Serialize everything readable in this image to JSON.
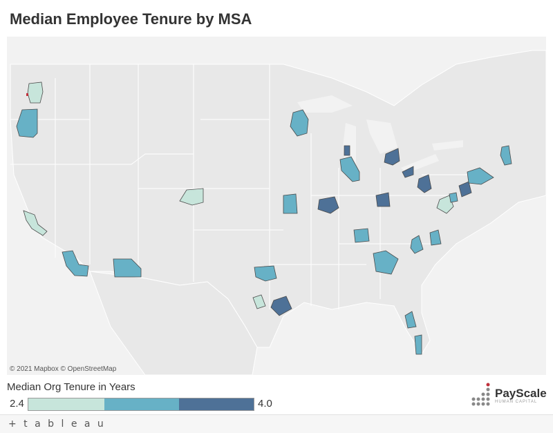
{
  "title": "Median Employee Tenure by MSA",
  "attribution": "© 2021 Mapbox  © OpenStreetMap",
  "legend": {
    "title": "Median Org Tenure in Years",
    "min": "2.4",
    "max": "4.0",
    "colors": [
      "#c7e5db",
      "#67b1c6",
      "#4e7197"
    ]
  },
  "brand": {
    "name": "PayScale",
    "tagline": "HUMAN CAPITAL",
    "accent": "#c0303b"
  },
  "footer": {
    "logo": "+ t a b l e a u"
  },
  "map": {
    "background": "#f2f2f2",
    "land": "#e8e8e8",
    "border": "#ffffff",
    "msa_levels": {
      "Seattle": "low",
      "Portland": "mid",
      "San Francisco": "low",
      "Los Angeles": "mid",
      "Phoenix": "mid",
      "Denver": "low",
      "Minneapolis": "mid",
      "Milwaukee": "high",
      "Chicago": "mid",
      "Detroit": "high",
      "Cleveland": "high",
      "Pittsburgh": "high",
      "Kansas City": "mid",
      "St. Louis": "high",
      "Cincinnati": "high",
      "Washington": "low",
      "Baltimore": "mid",
      "Philadelphia": "high",
      "New York": "mid",
      "Boston": "mid",
      "Nashville": "mid",
      "Charlotte": "mid",
      "Raleigh": "mid",
      "Atlanta": "mid",
      "Dallas": "mid",
      "Austin": "low",
      "Houston": "high",
      "Tampa": "mid",
      "Miami": "mid"
    }
  }
}
